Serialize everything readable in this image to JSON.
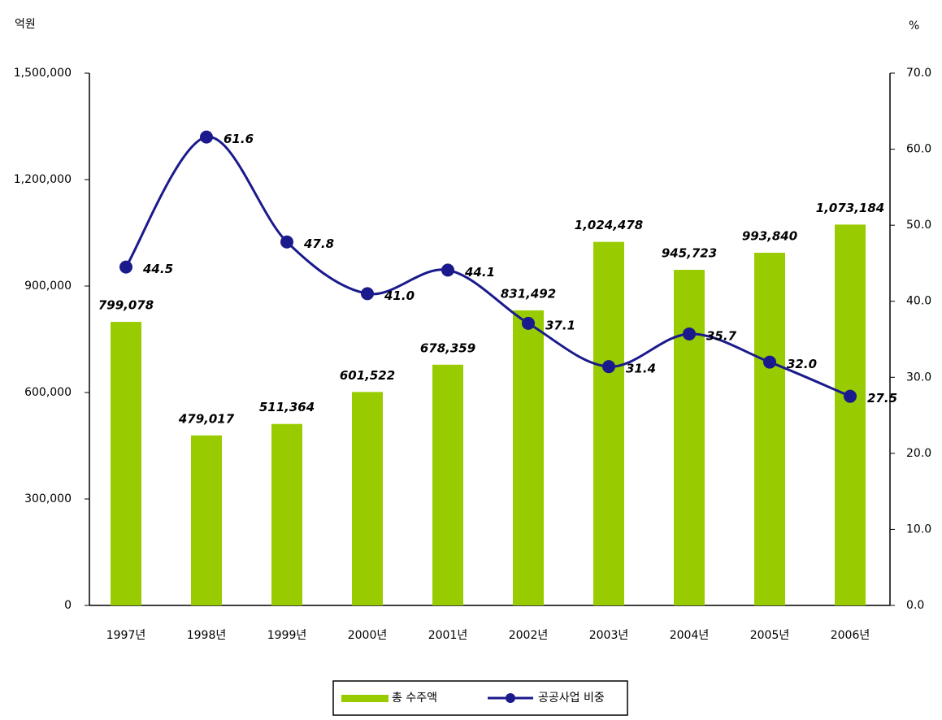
{
  "chart_data": {
    "type": "bar+line",
    "y_label": "억원",
    "y2_label": "%",
    "categories": [
      "1997년",
      "1998년",
      "1999년",
      "2000년",
      "2001년",
      "2002년",
      "2003년",
      "2004년",
      "2005년",
      "2006년"
    ],
    "series": [
      {
        "name": "총 수주액",
        "type": "bar",
        "color": "#99cc00",
        "values": [
          799078,
          479017,
          511364,
          601522,
          678359,
          831492,
          1024478,
          945723,
          993840,
          1073184
        ],
        "value_labels": [
          "799,078",
          "479,017",
          "511,364",
          "601,522",
          "678,359",
          "831,492",
          "1,024,478",
          "945,723",
          "993,840",
          "1,073,184"
        ]
      },
      {
        "name": "공공사업 비중",
        "type": "line",
        "axis": "y2",
        "color": "#1a1a8c",
        "values": [
          44.5,
          61.6,
          47.8,
          41.0,
          44.1,
          37.1,
          31.4,
          35.7,
          32.0,
          27.5
        ],
        "value_labels": [
          "44.5",
          "61.6",
          "47.8",
          "41.0",
          "44.1",
          "37.1",
          "31.4",
          "35.7",
          "32.0",
          "27.5"
        ]
      }
    ],
    "ylim": [
      0,
      1500000
    ],
    "yticks": [
      0,
      {
        "value": 300000,
        "label": "300,000"
      },
      {
        "value": 600000,
        "label": "600,000"
      },
      {
        "value": 900000,
        "label": "900,000"
      },
      {
        "value": 1200000,
        "label": "1,200,000"
      },
      {
        "value": 1500000,
        "label": "1,500,000"
      }
    ],
    "y2lim": [
      0,
      70
    ],
    "y2ticks": [
      {
        "value": 0,
        "label": "0.0"
      },
      {
        "value": 10,
        "label": "10.0"
      },
      {
        "value": 20,
        "label": "20.0"
      },
      {
        "value": 30,
        "label": "30.0"
      },
      {
        "value": 40,
        "label": "40.0"
      },
      {
        "value": 50,
        "label": "50.0"
      },
      {
        "value": 60,
        "label": "60.0"
      },
      {
        "value": 70,
        "label": "70.0"
      }
    ],
    "legend": "bottom"
  }
}
